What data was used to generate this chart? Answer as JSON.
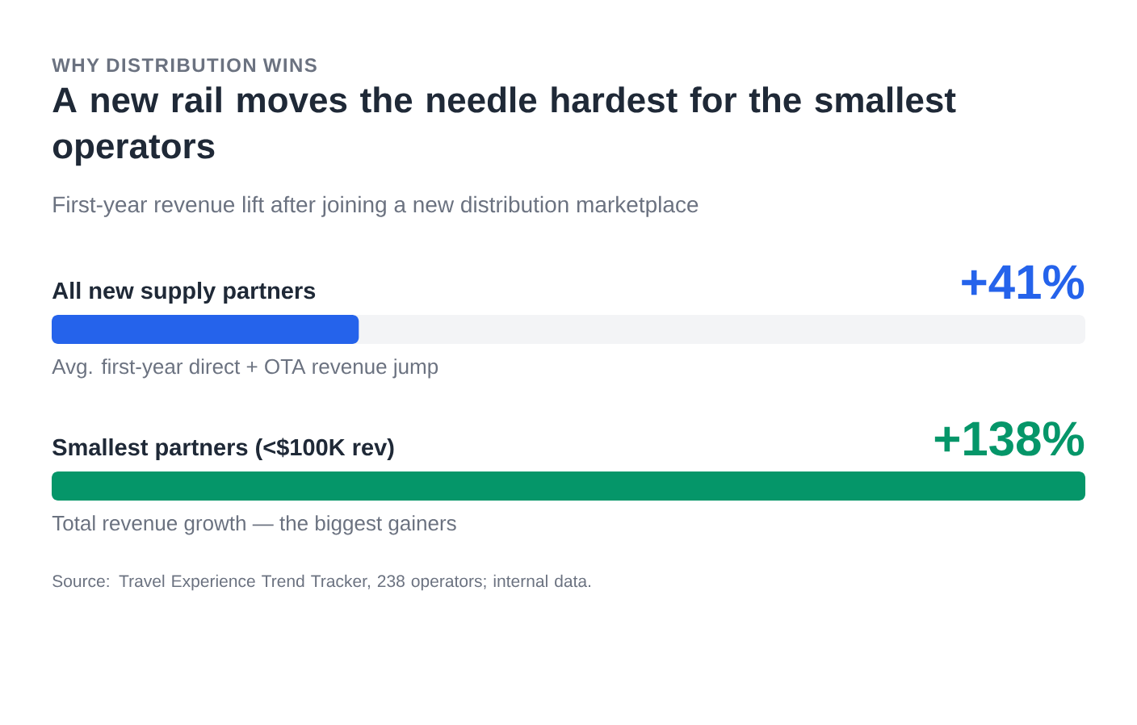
{
  "chart_data": {
    "type": "bar",
    "orientation": "horizontal",
    "title": "A new rail moves the needle hardest for the smallest operators",
    "subtitle": "First-year revenue lift after joining a new distribution marketplace",
    "categories": [
      "All new supply partners",
      "Smallest partners (<$100K rev)"
    ],
    "values": [
      41,
      138
    ],
    "colors": [
      "#2563eb",
      "#059669"
    ],
    "value_labels": [
      "+41%",
      "+138%"
    ],
    "xlim": [
      0,
      138
    ],
    "tick_labels": false,
    "annotations": [
      "WHY DISTRIBUTION WINS",
      "Avg. first-year direct + OTA revenue jump",
      "Total revenue growth — the biggest gainers",
      "Source: Travel Experience Trend Tracker, 238 operators; internal data."
    ]
  }
}
